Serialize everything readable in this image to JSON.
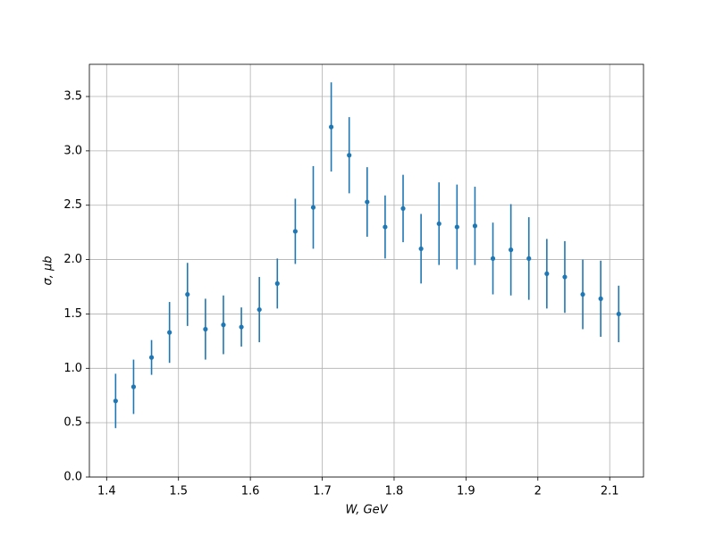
{
  "chart_data": {
    "type": "errorbar",
    "xlabel": "W, GeV",
    "ylabel": "σ, μb",
    "x": [
      1.4125,
      1.4375,
      1.4625,
      1.4875,
      1.5125,
      1.5375,
      1.5625,
      1.5875,
      1.6125,
      1.6375,
      1.6625,
      1.6875,
      1.7125,
      1.7375,
      1.7625,
      1.7875,
      1.8125,
      1.8375,
      1.8625,
      1.8875,
      1.9125,
      1.9375,
      1.9625,
      1.9875,
      2.0125,
      2.0375,
      2.0625,
      2.0875,
      2.1125
    ],
    "values": [
      0.7,
      0.83,
      1.1,
      1.33,
      1.68,
      1.36,
      1.4,
      1.38,
      1.54,
      1.78,
      2.26,
      2.48,
      3.22,
      2.96,
      2.53,
      2.3,
      2.47,
      2.1,
      2.33,
      2.3,
      2.31,
      2.01,
      2.09,
      2.01,
      1.87,
      1.84,
      1.68,
      1.64,
      1.5
    ],
    "errors": [
      0.25,
      0.25,
      0.16,
      0.28,
      0.29,
      0.28,
      0.27,
      0.18,
      0.3,
      0.23,
      0.3,
      0.38,
      0.41,
      0.35,
      0.32,
      0.29,
      0.31,
      0.32,
      0.38,
      0.39,
      0.36,
      0.33,
      0.42,
      0.38,
      0.32,
      0.33,
      0.32,
      0.35,
      0.26
    ],
    "color": "#1f77b4",
    "xlim": [
      1.376,
      2.147
    ],
    "xticks": [
      1.4,
      1.5,
      1.6,
      1.7,
      1.8,
      1.9,
      2.0,
      2.1
    ],
    "ylim": [
      0,
      3.796
    ],
    "yticks": [
      {
        "value": 0,
        "label": "0.0"
      },
      0.5,
      {
        "value": 1,
        "label": "1.0"
      },
      1.5,
      {
        "value": 2,
        "label": "2.0"
      },
      2.5,
      {
        "value": 3,
        "label": "3.0"
      },
      3.5
    ],
    "grid": true
  }
}
